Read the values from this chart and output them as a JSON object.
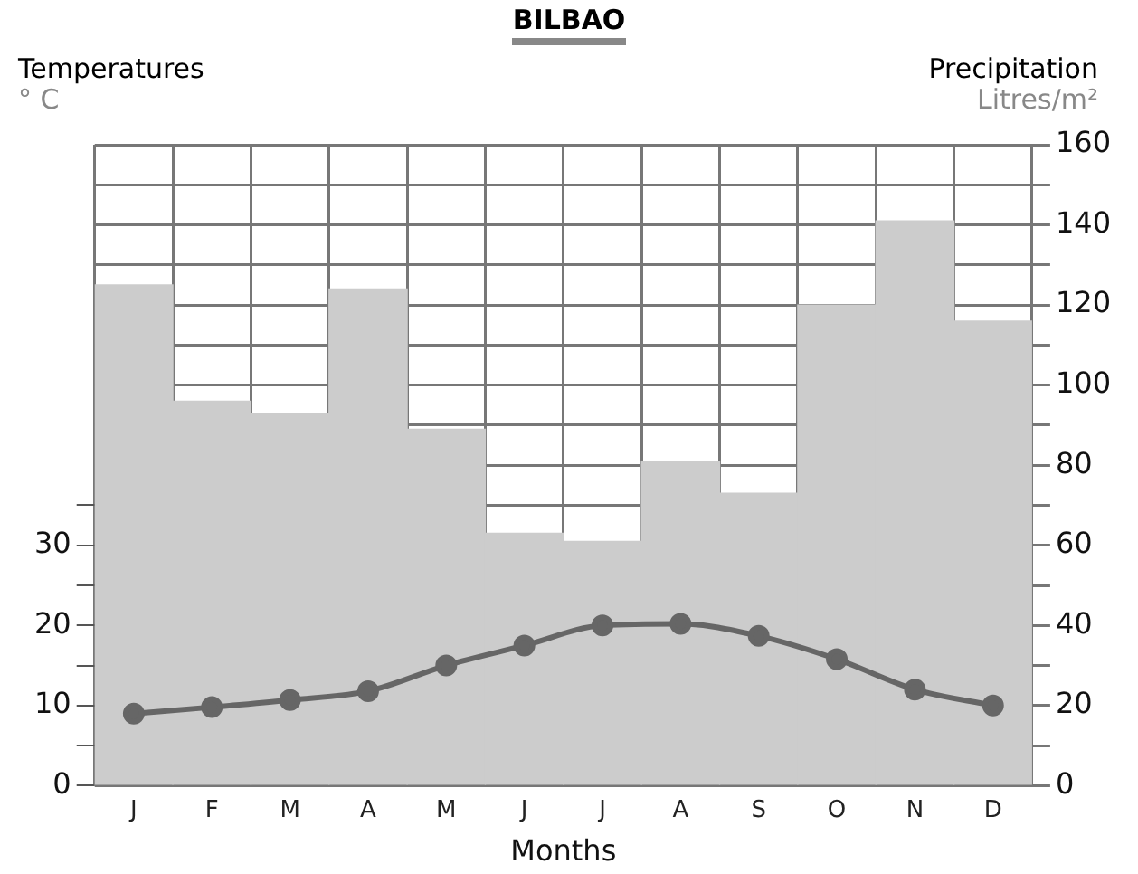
{
  "chart_data": {
    "type": "bar",
    "title": "BILBAO",
    "xlabel": "Months",
    "ylabel": "Temperatures\n° C",
    "y2label": "Precipitation\nLitres/m²",
    "categories": [
      "J",
      "F",
      "M",
      "A",
      "M",
      "J",
      "J",
      "A",
      "S",
      "O",
      "N",
      "D"
    ],
    "series": [
      {
        "axis": "y2",
        "color": "#cccccc",
        "values": [
          125,
          96,
          93,
          124,
          89,
          63,
          61,
          81,
          73,
          120,
          141,
          116
        ]
      },
      {
        "type": "line",
        "axis": "y",
        "color": "#666666",
        "values": [
          9,
          9.8,
          10.7,
          11.8,
          15,
          17.5,
          20,
          20.2,
          18.7,
          15.8,
          12,
          10
        ]
      }
    ],
    "ylim": [
      0,
      80
    ],
    "yticks": [
      0,
      {
        "value": 5,
        "label": null
      },
      10,
      {
        "value": 15,
        "label": null
      },
      20,
      {
        "value": 25,
        "label": null
      },
      30,
      {
        "value": 35,
        "label": null
      }
    ],
    "y2lim": [
      0,
      160
    ],
    "y2ticks": [
      0,
      {
        "value": 10,
        "label": null
      },
      20,
      {
        "value": 30,
        "label": null
      },
      40,
      {
        "value": 50,
        "label": null
      },
      60,
      {
        "value": 70,
        "label": null
      },
      80,
      {
        "value": 90,
        "label": null
      },
      100,
      {
        "value": 110,
        "label": null
      },
      120,
      {
        "value": 130,
        "label": null
      },
      140,
      {
        "value": 150,
        "label": null
      },
      160
    ],
    "grid": true,
    "legend": false,
    "marker": "circle",
    "line_style": "solid"
  }
}
